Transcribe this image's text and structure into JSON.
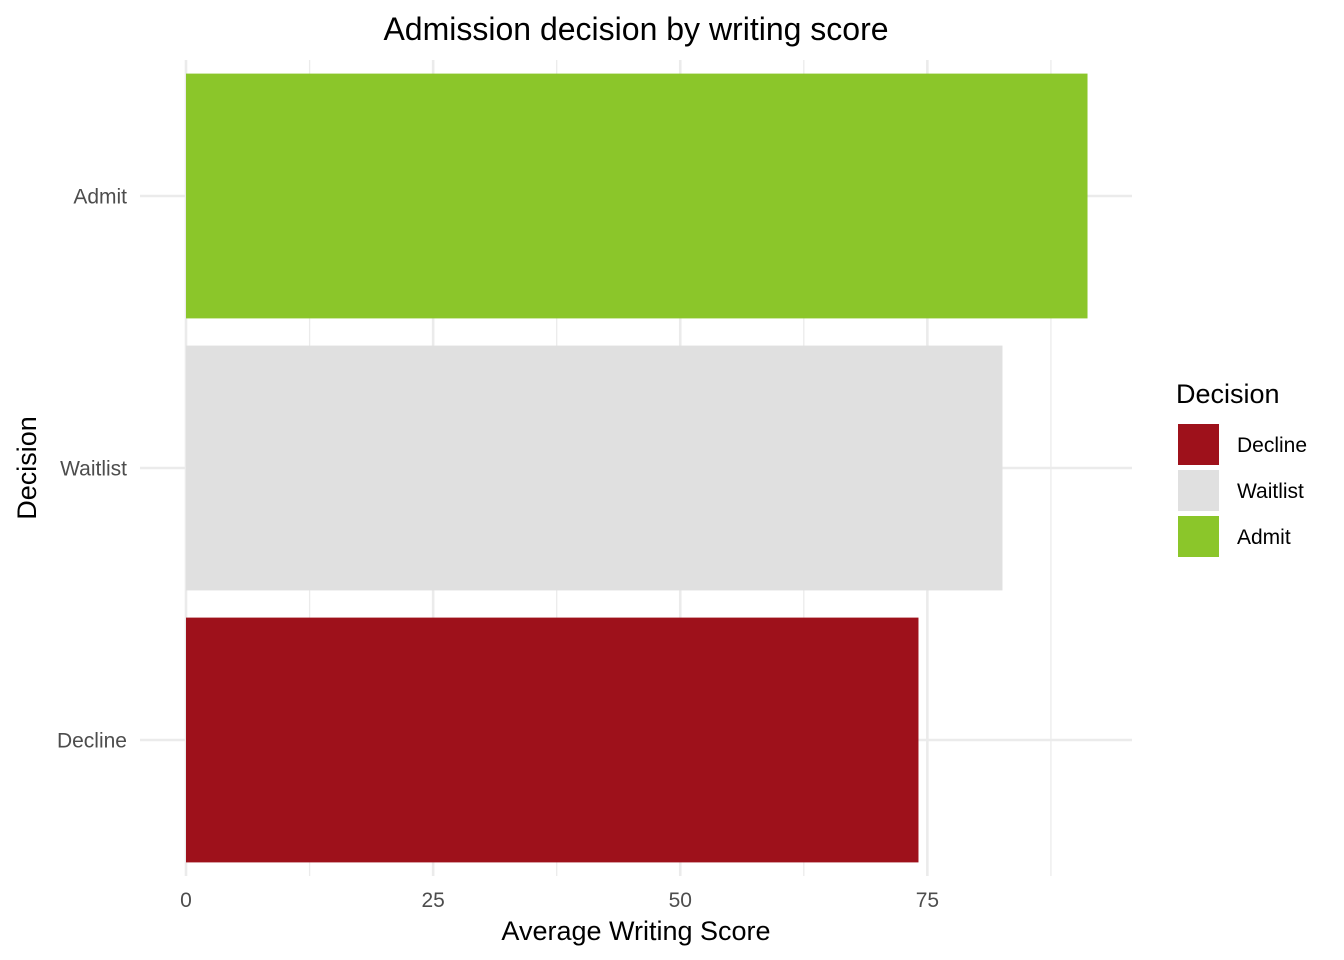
{
  "chart_data": {
    "type": "bar",
    "orientation": "horizontal",
    "title": "Admission decision by writing score",
    "xlabel": "Average Writing Score",
    "ylabel": "Decision",
    "categories": [
      "Decline",
      "Waitlist",
      "Admit"
    ],
    "values": [
      74.1,
      82.6,
      91.2
    ],
    "colors": [
      "#9e111b",
      "#e0e0e0",
      "#8bc62a"
    ],
    "xlim": [
      0,
      95.7
    ],
    "xticks": [
      0,
      25,
      50,
      75
    ],
    "grid": true,
    "legend": {
      "title": "Decision",
      "position": "right",
      "entries": [
        "Decline",
        "Waitlist",
        "Admit"
      ]
    }
  }
}
